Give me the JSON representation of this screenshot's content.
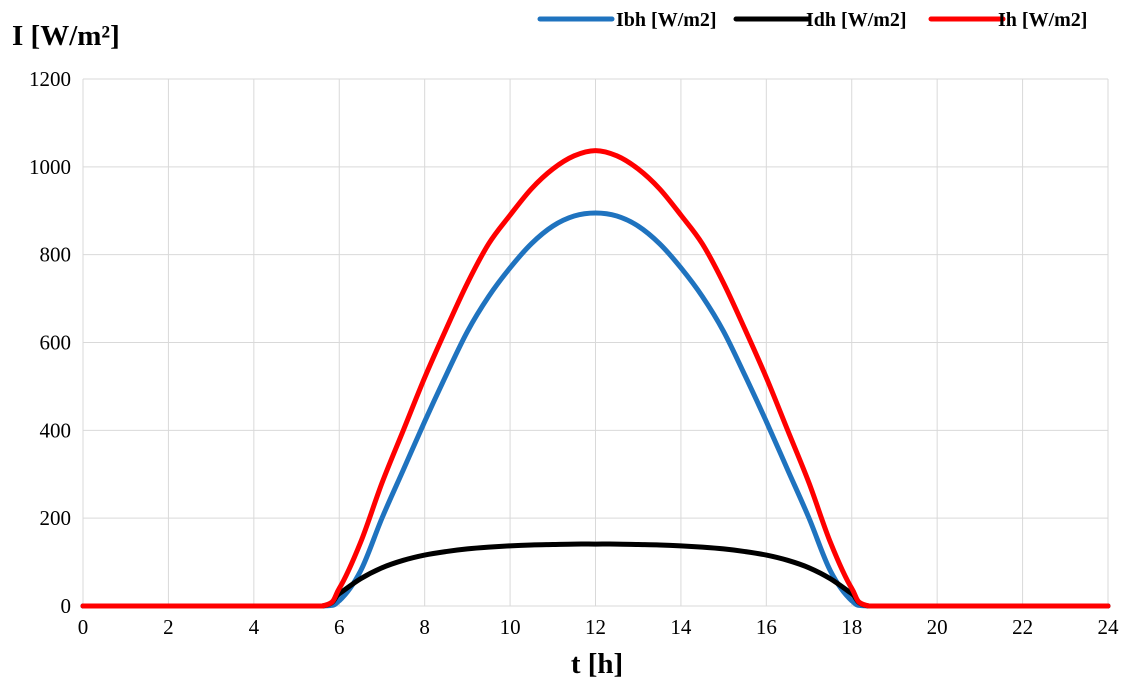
{
  "chart_data": {
    "type": "line",
    "title": "",
    "ylabel": "I [W/m²]",
    "xlabel": "t [h]",
    "xlim": [
      0,
      24
    ],
    "ylim": [
      0,
      1200
    ],
    "x_ticks": [
      0,
      2,
      4,
      6,
      8,
      10,
      12,
      14,
      16,
      18,
      20,
      22,
      24
    ],
    "y_ticks": [
      0,
      200,
      400,
      600,
      800,
      1000,
      1200
    ],
    "grid": true,
    "legend_position": "top-right",
    "x": [
      0,
      2,
      4,
      5.6,
      6,
      6.5,
      7,
      7.5,
      8,
      8.5,
      9,
      9.5,
      10,
      10.5,
      11,
      11.5,
      12,
      12.5,
      13,
      13.5,
      14,
      14.5,
      15,
      15.5,
      16,
      16.5,
      17,
      17.5,
      18,
      18.4,
      20,
      22,
      24
    ],
    "series": [
      {
        "name": "Ibh [W/m2]",
        "color": "#1f73bf",
        "values": [
          0,
          0,
          0,
          0,
          12,
          80,
          200,
          310,
          420,
          525,
          625,
          705,
          770,
          825,
          865,
          888,
          895,
          888,
          865,
          825,
          770,
          705,
          625,
          525,
          420,
          310,
          200,
          80,
          12,
          0,
          0,
          0,
          0
        ]
      },
      {
        "name": "Idh [W/m2]",
        "color": "#000000",
        "values": [
          0,
          0,
          0,
          0,
          28,
          62,
          87,
          104,
          116,
          124,
          130,
          134,
          137,
          139,
          140,
          141,
          141,
          141,
          140,
          139,
          137,
          134,
          130,
          124,
          116,
          104,
          87,
          62,
          28,
          0,
          0,
          0,
          0
        ]
      },
      {
        "name": "Ih [W/m2]",
        "color": "#ff0000",
        "values": [
          0,
          0,
          0,
          0,
          40,
          145,
          280,
          400,
          520,
          630,
          735,
          825,
          890,
          950,
          995,
          1025,
          1037,
          1025,
          995,
          950,
          890,
          825,
          735,
          630,
          520,
          400,
          280,
          145,
          40,
          0,
          0,
          0,
          0
        ]
      }
    ]
  }
}
